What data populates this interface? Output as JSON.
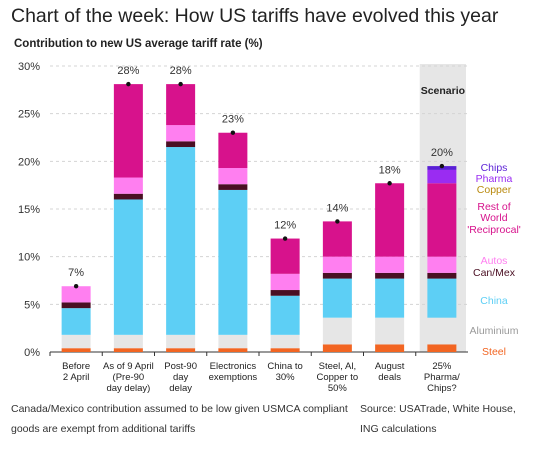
{
  "title": "Chart of the week: How US tariffs have evolved this year",
  "footnote_left_1": "Canada/Mexico contribution assumed to be low given USMCA compliant",
  "footnote_left_2": "goods are exempt from additional tariffs",
  "footnote_right_1": "Source: USATrade, White House,",
  "footnote_right_2": "ING calculations",
  "colors": {
    "steel": "#f26522",
    "aluminium": "#e6e6e6",
    "china": "#5dcff5",
    "canmex": "#4a0f23",
    "autos": "#ff7ff0",
    "reciprocal": "#d7128c",
    "copper": "#b98a0f",
    "pharma": "#9a2cf2",
    "chips": "#5a1fd6",
    "scenario_bg": "#e6e6e6",
    "gridline": "#d4d4d4"
  },
  "chart_data": {
    "type": "bar",
    "stacked": true,
    "title": "Contribution to new US average tariff rate (%)",
    "yticks": [
      "0%",
      "5%",
      "10%",
      "15%",
      "20%",
      "25%",
      "30%"
    ],
    "ylim": [
      0,
      30
    ],
    "grid": true,
    "scenario_label": "Scenario",
    "categories": [
      [
        "Before",
        "2 April"
      ],
      [
        "As of 9 April",
        "(Pre-90",
        "day delay)"
      ],
      [
        "Post-90",
        "day",
        "delay"
      ],
      [
        "Electronics",
        "exemptions"
      ],
      [
        "China to",
        "30%"
      ],
      [
        "Steel, Al,",
        "Copper to",
        "50%"
      ],
      [
        "August",
        "deals"
      ],
      [
        "25%",
        "Pharma/",
        "Chips?"
      ]
    ],
    "totals": [
      "7%",
      "28%",
      "28%",
      "23%",
      "12%",
      "14%",
      "18%",
      "20%"
    ],
    "total_values": [
      6.9,
      28.1,
      28.1,
      23.0,
      11.9,
      13.7,
      17.7,
      19.5
    ],
    "series": [
      {
        "name": "Steel",
        "color_key": "steel",
        "values": [
          0.4,
          0.4,
          0.4,
          0.4,
          0.4,
          0.8,
          0.8,
          0.8
        ]
      },
      {
        "name": "Aluminium",
        "color_key": "aluminium",
        "values": [
          1.4,
          1.4,
          1.4,
          1.4,
          1.4,
          2.8,
          2.8,
          2.8
        ]
      },
      {
        "name": "China",
        "color_key": "china",
        "values": [
          2.8,
          14.2,
          19.7,
          15.2,
          4.1,
          4.1,
          4.1,
          4.1
        ]
      },
      {
        "name": "Can/Mex",
        "color_key": "canmex",
        "values": [
          0.6,
          0.6,
          0.6,
          0.6,
          0.6,
          0.6,
          0.6,
          0.6
        ]
      },
      {
        "name": "Autos",
        "color_key": "autos",
        "values": [
          1.7,
          1.7,
          1.7,
          1.7,
          1.7,
          1.7,
          1.7,
          1.7
        ]
      },
      {
        "name": "Rest of World 'Reciprocal'",
        "color_key": "reciprocal",
        "values": [
          0.0,
          9.8,
          4.3,
          3.7,
          3.7,
          3.7,
          7.7,
          7.7
        ]
      },
      {
        "name": "Copper",
        "color_key": "copper",
        "values": [
          0,
          0,
          0,
          0,
          0,
          0,
          0,
          0
        ]
      },
      {
        "name": "Pharma",
        "color_key": "pharma",
        "values": [
          0,
          0,
          0,
          0,
          0,
          0,
          0,
          1.4
        ]
      },
      {
        "name": "Chips",
        "color_key": "chips",
        "values": [
          0,
          0,
          0,
          0,
          0,
          0,
          0,
          0.4
        ]
      }
    ],
    "legend": [
      {
        "lines": [
          "Chips"
        ],
        "color_key": "chips"
      },
      {
        "lines": [
          "Pharma"
        ],
        "color_key": "pharma"
      },
      {
        "lines": [
          "Copper"
        ],
        "color_key": "copper"
      },
      {
        "lines": [
          "Rest of",
          "World",
          "'Reciprocal'"
        ],
        "color_key": "reciprocal"
      },
      {
        "lines": [
          "Autos"
        ],
        "color_key": "autos"
      },
      {
        "lines": [
          "Can/Mex"
        ],
        "color_key": "canmex"
      },
      {
        "lines": [
          "China"
        ],
        "color_key": "china"
      },
      {
        "lines": [
          "Aluminium"
        ],
        "color_key": "aluminium_text"
      },
      {
        "lines": [
          "Steel"
        ],
        "color_key": "steel"
      }
    ],
    "legend_text_colors": {
      "aluminium_text": "#9a9a9a"
    }
  }
}
